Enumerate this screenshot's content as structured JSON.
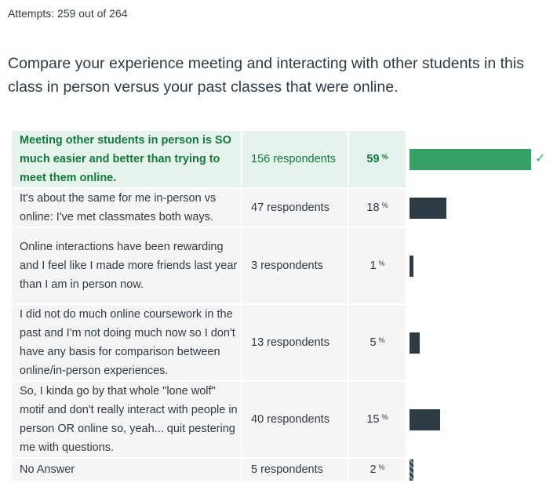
{
  "attempts": "Attempts: 259 out of 264",
  "question": "Compare your experience meeting and interacting with other students in this class in person versus your past classes that were online.",
  "answers": [
    {
      "text": "Meeting other students in person is SO much easier and better than trying to meet them online.",
      "count": "156 respondents",
      "percent": "59",
      "value": 59,
      "correct": true,
      "height": 72
    },
    {
      "text": "It's about the same for me in-person vs online: I've met classmates both ways.",
      "count": "47 respondents",
      "percent": "18",
      "value": 18,
      "correct": false,
      "height": 48
    },
    {
      "text": "Online interactions have been rewarding and I feel like I made more friends last year than I am in person now.",
      "count": "3 respondents",
      "percent": "1",
      "value": 1,
      "correct": false,
      "height": 96
    },
    {
      "text": "I did not do much online coursework in the past and I'm not doing much now so I don't have any basis for comparison between online/in-person experiences.",
      "count": "13 respondents",
      "percent": "5",
      "value": 5,
      "correct": false,
      "height": 96
    },
    {
      "text": "So, I kinda go by that whole \"lone wolf\" motif and don't really interact with people in person OR online so, yeah... quit pestering me with questions.",
      "count": "40 respondents",
      "percent": "15",
      "value": 15,
      "correct": false,
      "height": 96
    },
    {
      "text": "No Answer",
      "count": "5 respondents",
      "percent": "2",
      "value": 2,
      "correct": false,
      "noanswer": true,
      "height": 28
    }
  ],
  "percent_symbol": "%",
  "correct_icon": "checkmark-icon"
}
